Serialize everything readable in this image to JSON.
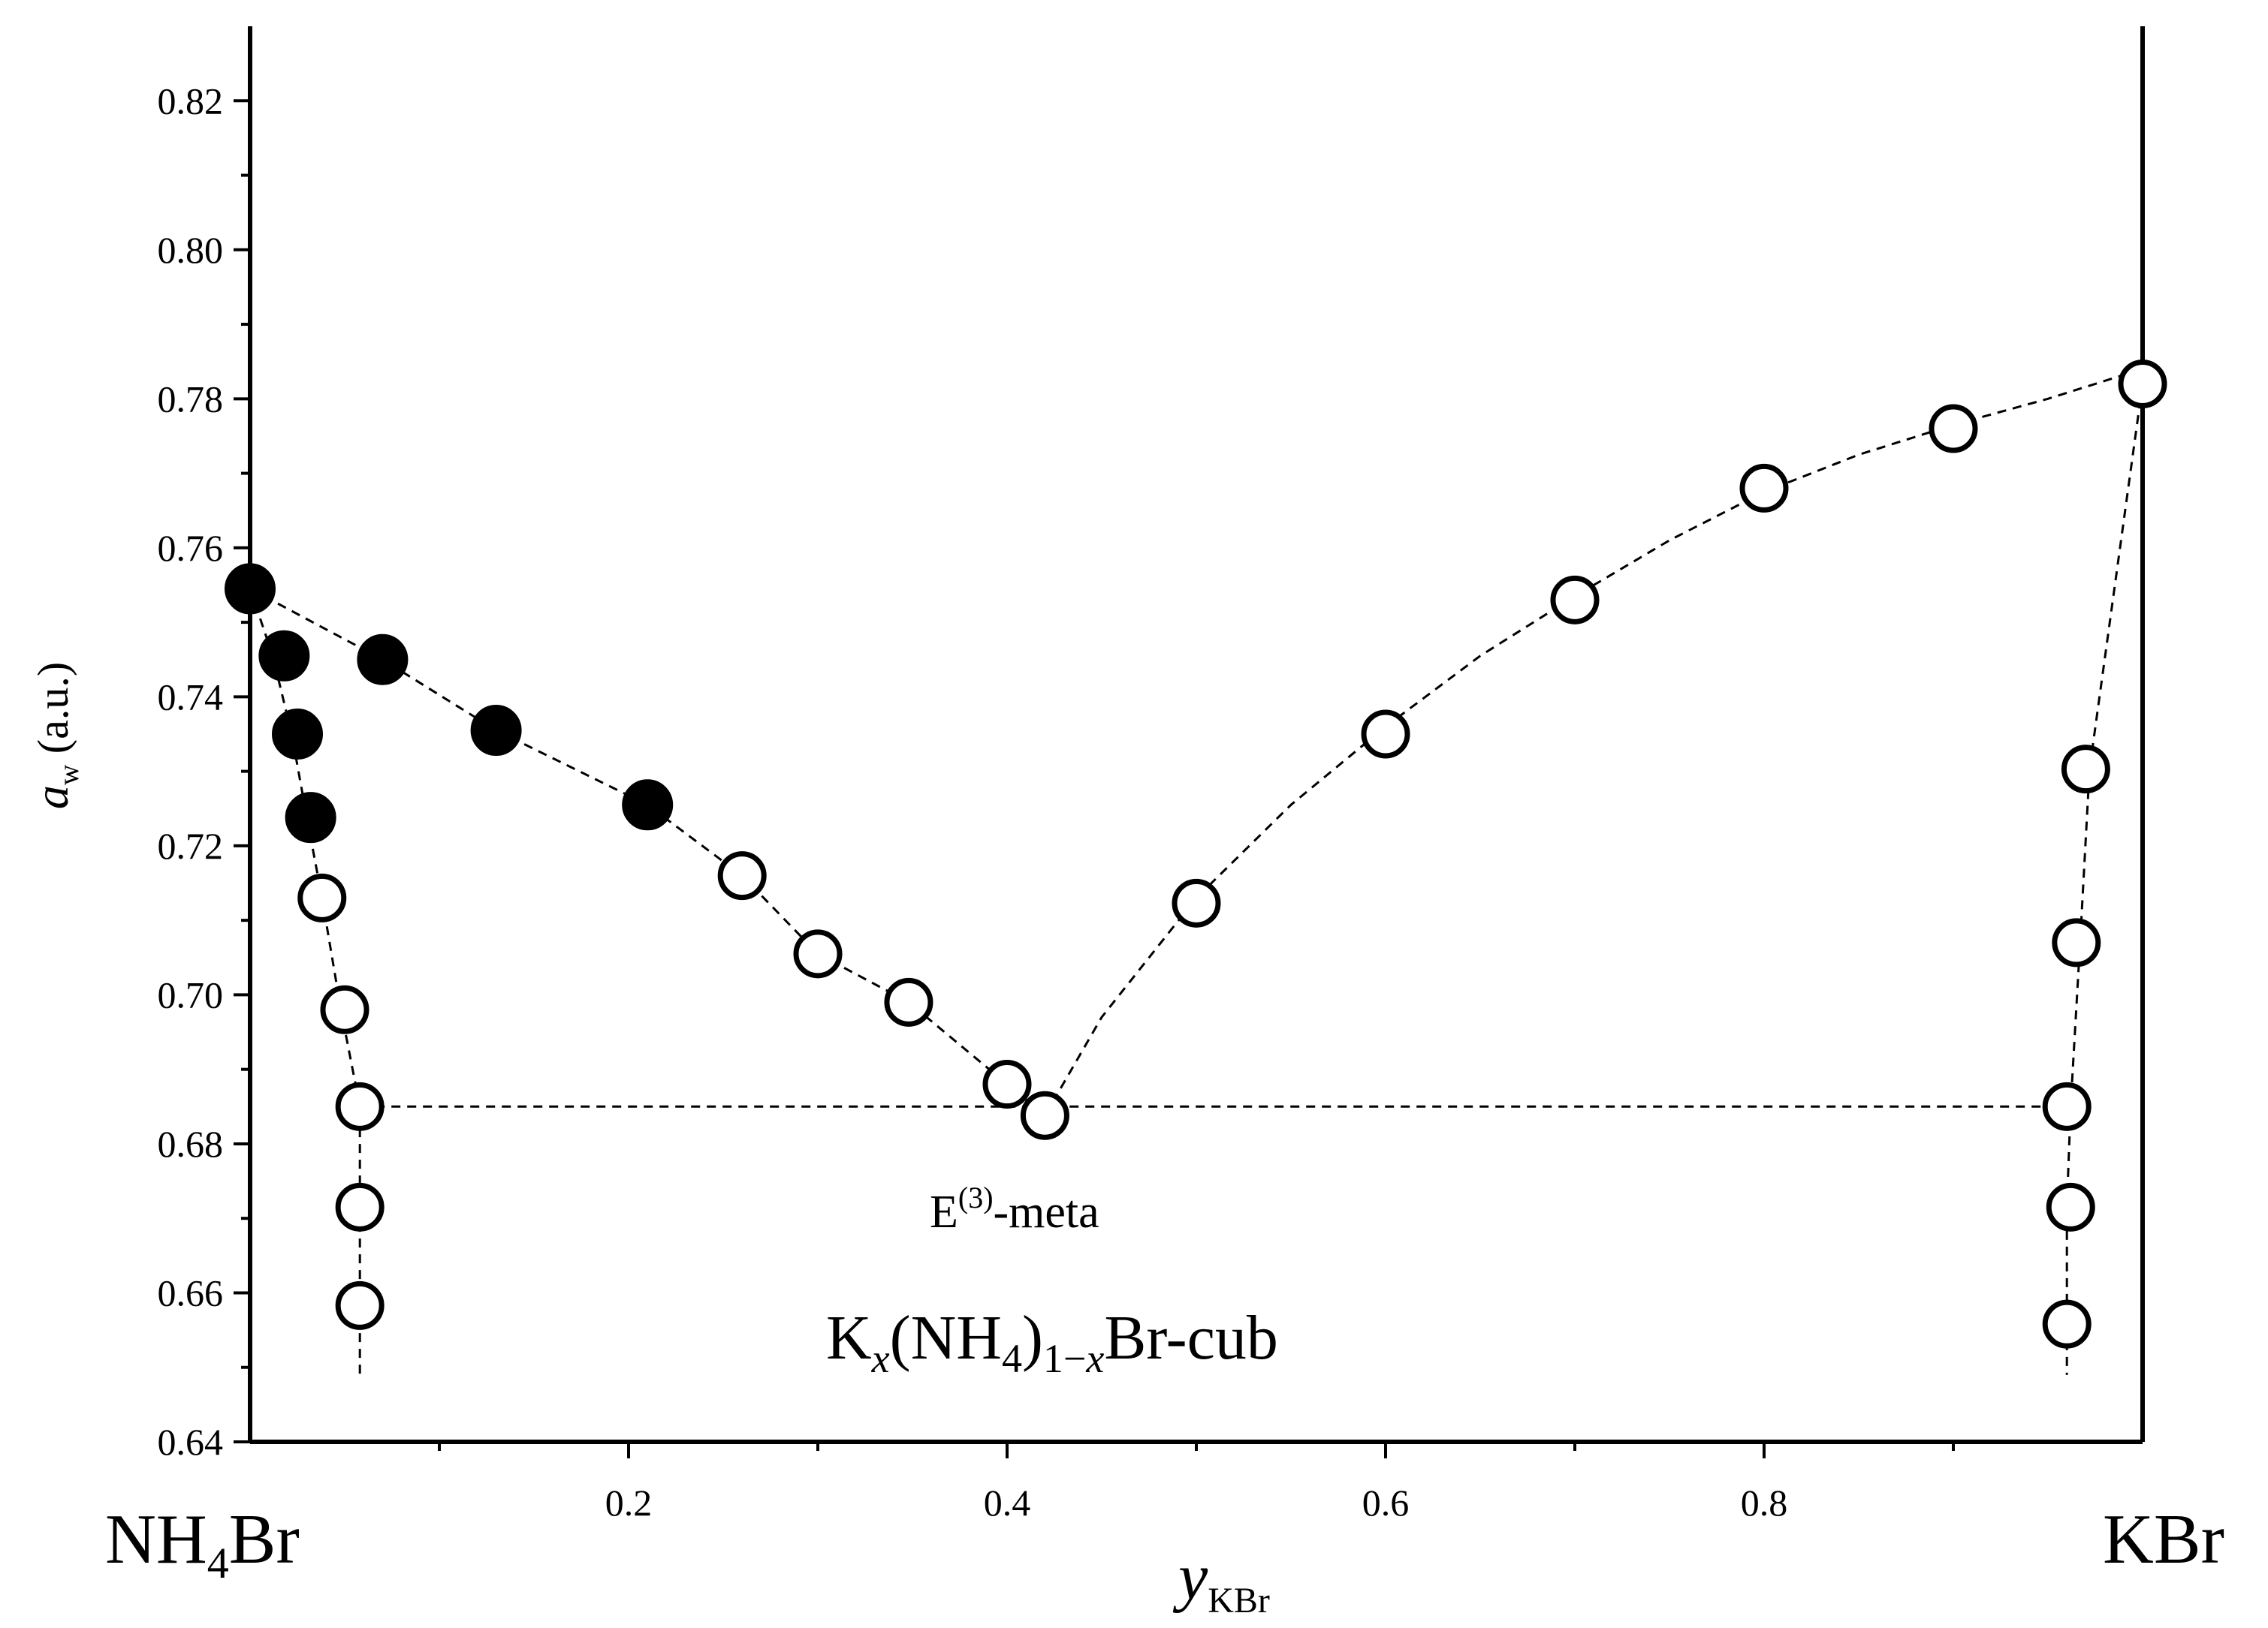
{
  "chart_data": {
    "type": "scatter",
    "title": "",
    "xlabel": {
      "main": "y",
      "sub": "KBr"
    },
    "ylabel": {
      "main": "a",
      "sub": "w",
      "unit": "(a.u.)"
    },
    "xlim": [
      0,
      1
    ],
    "ylim": [
      0.64,
      0.83
    ],
    "x_ticks": [
      0.2,
      0.4,
      0.6,
      0.8
    ],
    "x_tick_labels": [
      "0.2",
      "0.4",
      "0.6",
      "0.8"
    ],
    "x_minor_ticks": [
      0.1,
      0.3,
      0.5,
      0.7,
      0.9
    ],
    "y_ticks": [
      0.64,
      0.66,
      0.68,
      0.7,
      0.72,
      0.74,
      0.76,
      0.78,
      0.8,
      0.82
    ],
    "y_tick_labels": [
      "0.64",
      "0.66",
      "0.68",
      "0.70",
      "0.72",
      "0.74",
      "0.76",
      "0.78",
      "0.80",
      "0.82"
    ],
    "y_minor_ticks": [
      0.65,
      0.67,
      0.69,
      0.71,
      0.73,
      0.75,
      0.77,
      0.79,
      0.81
    ],
    "endpoint_labels": {
      "left": {
        "main": "NH",
        "sub": "4",
        "tail": "Br"
      },
      "right": "KBr"
    },
    "annotations": {
      "eutonic": {
        "main": "E",
        "sup": "(3)",
        "tail": "-meta"
      },
      "phase": {
        "p1": "K",
        "x1": "x",
        "p2": "(NH",
        "s1": "4",
        "p3": ")",
        "s2": "1−",
        "x2": "x",
        "p4": "Br-cub"
      }
    },
    "series": [
      {
        "name": "filled",
        "marker": "filled-circle",
        "x": [
          0.0,
          0.018,
          0.025,
          0.032,
          0.07,
          0.13,
          0.21
        ],
        "y": [
          0.7545,
          0.7455,
          0.735,
          0.7238,
          0.745,
          0.7355,
          0.7255
        ]
      },
      {
        "name": "open",
        "marker": "open-circle",
        "x": [
          0.038,
          0.05,
          0.058,
          0.058,
          0.058,
          0.26,
          0.3,
          0.348,
          0.4,
          0.42,
          0.5,
          0.6,
          0.7,
          0.8,
          0.9,
          1.0,
          0.97,
          0.965,
          0.96,
          0.962,
          0.96
        ],
        "y": [
          0.713,
          0.698,
          0.685,
          0.6715,
          0.6583,
          0.716,
          0.7055,
          0.699,
          0.688,
          0.6838,
          0.7123,
          0.735,
          0.753,
          0.768,
          0.776,
          0.782,
          0.7303,
          0.707,
          0.685,
          0.6715,
          0.6558
        ]
      }
    ],
    "guide_lines": [
      {
        "name": "nh4br-solubility-branch",
        "x": [
          0.0,
          0.012,
          0.022,
          0.03,
          0.038,
          0.048,
          0.058,
          0.058
        ],
        "y": [
          0.7545,
          0.7455,
          0.735,
          0.7238,
          0.713,
          0.698,
          0.685,
          0.649
        ]
      },
      {
        "name": "mixed-crystal-branch",
        "x": [
          0.0,
          0.07,
          0.13,
          0.21,
          0.26,
          0.3,
          0.348,
          0.4,
          0.42
        ],
        "y": [
          0.7545,
          0.745,
          0.7355,
          0.7255,
          0.716,
          0.7055,
          0.699,
          0.688,
          0.6838
        ]
      },
      {
        "name": "kbr-saturation-curve",
        "x": [
          0.42,
          0.45,
          0.5,
          0.55,
          0.6,
          0.65,
          0.7,
          0.75,
          0.8,
          0.85,
          0.9,
          0.95,
          1.0
        ],
        "y": [
          0.6838,
          0.697,
          0.713,
          0.7255,
          0.736,
          0.7455,
          0.7535,
          0.761,
          0.7675,
          0.7725,
          0.7765,
          0.78,
          0.784
        ]
      },
      {
        "name": "kbr-solubility-branch",
        "x": [
          1.0,
          0.972,
          0.967,
          0.962,
          0.96,
          0.96
        ],
        "y": [
          0.782,
          0.7303,
          0.707,
          0.685,
          0.6715,
          0.649
        ]
      },
      {
        "name": "eutonic-tie-line",
        "x": [
          0.058,
          0.96
        ],
        "y": [
          0.685,
          0.685
        ]
      }
    ]
  }
}
